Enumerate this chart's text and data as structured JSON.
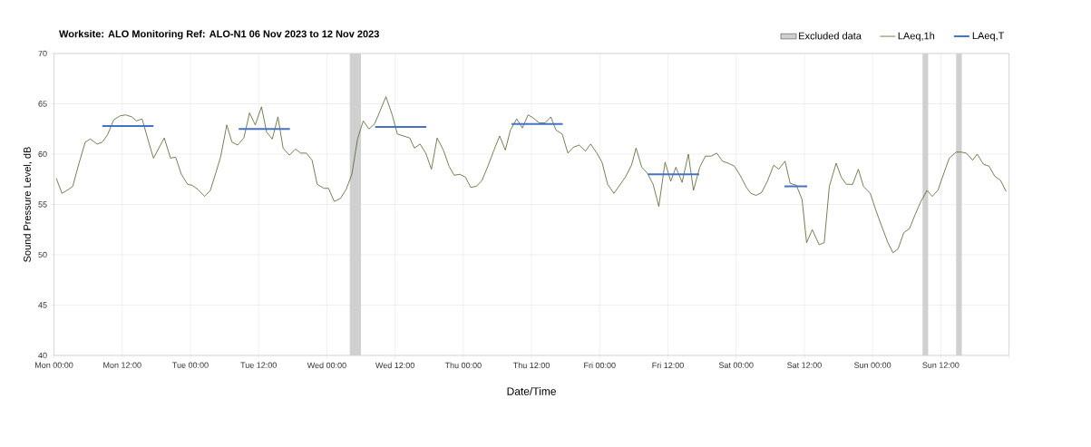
{
  "chart_data": {
    "type": "line",
    "title": "Worksite: ALO    Monitoring Ref: ALO-N1     06 Nov 2023 to 12 Nov 2023",
    "xlabel": "Date/Time",
    "ylabel": "Sound Pressure Level, dB",
    "xlim": [
      "2023-11-06T00:00",
      "2023-11-13T00:00"
    ],
    "ylim": [
      40,
      70
    ],
    "xticks": [
      {
        "value": "2023-11-06T00:00",
        "label": "Mon 00:00"
      },
      {
        "value": "2023-11-06T12:00",
        "label": "Mon 12:00"
      },
      {
        "value": "2023-11-07T00:00",
        "label": "Tue 00:00"
      },
      {
        "value": "2023-11-07T12:00",
        "label": "Tue 12:00"
      },
      {
        "value": "2023-11-08T00:00",
        "label": "Wed 00:00"
      },
      {
        "value": "2023-11-08T12:00",
        "label": "Wed 12:00"
      },
      {
        "value": "2023-11-09T00:00",
        "label": "Thu 00:00"
      },
      {
        "value": "2023-11-09T12:00",
        "label": "Thu 12:00"
      },
      {
        "value": "2023-11-10T00:00",
        "label": "Fri 00:00"
      },
      {
        "value": "2023-11-10T12:00",
        "label": "Fri 12:00"
      },
      {
        "value": "2023-11-11T00:00",
        "label": "Sat 00:00"
      },
      {
        "value": "2023-11-11T12:00",
        "label": "Sat 12:00"
      },
      {
        "value": "2023-11-12T00:00",
        "label": "Sun 00:00"
      },
      {
        "value": "2023-11-12T12:00",
        "label": "Sun 12:00"
      },
      {
        "value": "2023-11-13T00:00",
        "label": null
      }
    ],
    "yticks": [
      40,
      45,
      50,
      55,
      60,
      65,
      70
    ],
    "grid": true,
    "legend": "top right",
    "line_style": "solid",
    "marker": "none",
    "bands": [
      {
        "axis": "x",
        "from": "2023-11-08T04:00",
        "to": "2023-11-08T06:00",
        "label": "Excluded data",
        "color": "#d0d0d0"
      },
      {
        "axis": "x",
        "from": "2023-11-12T08:48",
        "to": "2023-11-12T09:48",
        "color": "#d0d0d0"
      },
      {
        "axis": "x",
        "from": "2023-11-12T14:42",
        "to": "2023-11-12T15:42",
        "color": "#d0d0d0"
      }
    ],
    "series": [
      {
        "name": "LAeq,1h",
        "color": "#4f6228",
        "x": [
          "2023-11-06T00:24",
          "2023-11-06T01:24",
          "2023-11-06T02:18",
          "2023-11-06T03:18",
          "2023-11-06T04:24",
          "2023-11-06T05:30",
          "2023-11-06T06:24",
          "2023-11-06T07:36",
          "2023-11-06T08:30",
          "2023-11-06T09:24",
          "2023-11-06T10:30",
          "2023-11-06T11:36",
          "2023-11-06T12:36",
          "2023-11-06T13:42",
          "2023-11-06T14:30",
          "2023-11-06T15:30",
          "2023-11-06T16:30",
          "2023-11-06T17:30",
          "2023-11-06T19:24",
          "2023-11-06T20:30",
          "2023-11-06T21:24",
          "2023-11-06T22:24",
          "2023-11-06T23:30",
          "2023-11-07T00:18",
          "2023-11-07T01:18",
          "2023-11-07T02:30",
          "2023-11-07T03:30",
          "2023-11-07T04:30",
          "2023-11-07T05:18",
          "2023-11-07T06:24",
          "2023-11-07T07:18",
          "2023-11-07T08:18",
          "2023-11-07T09:24",
          "2023-11-07T10:24",
          "2023-11-07T11:24",
          "2023-11-07T12:30",
          "2023-11-07T13:24",
          "2023-11-07T14:24",
          "2023-11-07T15:24",
          "2023-11-07T16:18",
          "2023-11-07T17:24",
          "2023-11-07T18:30",
          "2023-11-07T19:24",
          "2023-11-07T20:24",
          "2023-11-07T21:24",
          "2023-11-07T22:18",
          "2023-11-07T23:30",
          "2023-11-08T00:18",
          "2023-11-08T01:18",
          "2023-11-08T02:24",
          "2023-11-08T03:24",
          "2023-11-08T04:24",
          "2023-11-08T05:24",
          "2023-11-08T06:24",
          "2023-11-08T07:24",
          "2023-11-08T08:24",
          "2023-11-08T10:24",
          "2023-11-08T11:30",
          "2023-11-08T12:24",
          "2023-11-08T13:30",
          "2023-11-08T14:36",
          "2023-11-08T15:24",
          "2023-11-08T16:24",
          "2023-11-08T17:24",
          "2023-11-08T18:24",
          "2023-11-08T19:24",
          "2023-11-08T20:30",
          "2023-11-08T21:30",
          "2023-11-08T22:24",
          "2023-11-08T23:24",
          "2023-11-09T00:24",
          "2023-11-09T01:18",
          "2023-11-09T02:18",
          "2023-11-09T03:18",
          "2023-11-09T04:24",
          "2023-11-09T05:24",
          "2023-11-09T06:24",
          "2023-11-09T07:24",
          "2023-11-09T08:18",
          "2023-11-09T09:24",
          "2023-11-09T10:24",
          "2023-11-09T11:24",
          "2023-11-09T12:18",
          "2023-11-09T13:24",
          "2023-11-09T14:24",
          "2023-11-09T15:24",
          "2023-11-09T16:18",
          "2023-11-09T17:24",
          "2023-11-09T18:24",
          "2023-11-09T19:24",
          "2023-11-09T20:24",
          "2023-11-09T21:30",
          "2023-11-09T22:24",
          "2023-11-09T23:30",
          "2023-11-10T00:24",
          "2023-11-10T01:24",
          "2023-11-10T02:30",
          "2023-11-10T03:30",
          "2023-11-10T04:30",
          "2023-11-10T05:36",
          "2023-11-10T06:24",
          "2023-11-10T07:24",
          "2023-11-10T08:24",
          "2023-11-10T09:24",
          "2023-11-10T10:24",
          "2023-11-10T11:30",
          "2023-11-10T12:30",
          "2023-11-10T13:24",
          "2023-11-10T14:30",
          "2023-11-10T15:36",
          "2023-11-10T16:30",
          "2023-11-10T17:36",
          "2023-11-10T18:36",
          "2023-11-10T19:36",
          "2023-11-10T20:36",
          "2023-11-10T21:36",
          "2023-11-10T22:36",
          "2023-11-10T23:42",
          "2023-11-11T00:42",
          "2023-11-11T01:48",
          "2023-11-11T02:36",
          "2023-11-11T03:30",
          "2023-11-11T04:30",
          "2023-11-11T05:30",
          "2023-11-11T06:36",
          "2023-11-11T07:30",
          "2023-11-11T08:36",
          "2023-11-11T09:30",
          "2023-11-11T10:36",
          "2023-11-11T11:36",
          "2023-11-11T12:24",
          "2023-11-11T13:24",
          "2023-11-11T14:36",
          "2023-11-11T15:30",
          "2023-11-11T16:24",
          "2023-11-11T17:36",
          "2023-11-11T18:30",
          "2023-11-11T19:24",
          "2023-11-11T20:30",
          "2023-11-11T21:30",
          "2023-11-11T22:24",
          "2023-11-11T23:36",
          "2023-11-12T00:36",
          "2023-11-12T01:42",
          "2023-11-12T02:42",
          "2023-11-12T03:36",
          "2023-11-12T04:30",
          "2023-11-12T05:30",
          "2023-11-12T06:30",
          "2023-11-12T07:30",
          "2023-11-12T08:30",
          "2023-11-12T09:36",
          "2023-11-12T10:30",
          "2023-11-12T11:30",
          "2023-11-12T12:36",
          "2023-11-12T13:30",
          "2023-11-12T14:42",
          "2023-11-12T15:36",
          "2023-11-12T16:30",
          "2023-11-12T17:36",
          "2023-11-12T18:24",
          "2023-11-12T19:30",
          "2023-11-12T20:30",
          "2023-11-12T21:30",
          "2023-11-12T22:30",
          "2023-11-12T23:30"
        ],
        "values": [
          57.6,
          56.1,
          56.4,
          56.8,
          59.1,
          61.2,
          61.5,
          61.0,
          61.2,
          61.9,
          63.4,
          63.8,
          63.9,
          63.7,
          63.3,
          63.5,
          61.5,
          59.6,
          61.6,
          59.6,
          59.7,
          58.0,
          57.0,
          56.9,
          56.5,
          55.8,
          56.4,
          58.2,
          59.7,
          62.9,
          61.2,
          60.9,
          61.6,
          64.1,
          62.9,
          64.7,
          62.2,
          61.5,
          63.7,
          60.6,
          59.9,
          60.5,
          60.1,
          60.1,
          59.4,
          57.0,
          56.6,
          56.6,
          55.3,
          55.6,
          56.5,
          58.0,
          61.5,
          63.3,
          62.5,
          63.0,
          65.7,
          63.9,
          62.0,
          61.8,
          61.6,
          60.6,
          61.0,
          60.1,
          58.5,
          61.6,
          60.4,
          58.8,
          57.9,
          58.0,
          57.7,
          56.7,
          56.8,
          57.4,
          58.9,
          60.4,
          61.8,
          60.4,
          62.4,
          63.5,
          62.6,
          63.9,
          63.6,
          63.1,
          63.1,
          63.7,
          62.4,
          62.0,
          60.1,
          60.7,
          60.9,
          60.3,
          61.0,
          60.1,
          59.2,
          57.0,
          56.1,
          56.9,
          57.7,
          58.9,
          60.6,
          58.7,
          58.1,
          57.0,
          54.8,
          59.2,
          57.3,
          58.7,
          57.2,
          60.0,
          56.4,
          58.7,
          59.8,
          59.8,
          60.1,
          59.3,
          59.1,
          58.8,
          57.9,
          56.7,
          56.1,
          55.9,
          56.2,
          57.3,
          58.9,
          58.5,
          59.3,
          57.1,
          56.9,
          55.5,
          51.2,
          52.5,
          51.0,
          51.2,
          56.8,
          59.1,
          57.7,
          57.0,
          57.0,
          58.5,
          56.8,
          56.1,
          54.4,
          52.7,
          51.2,
          50.2,
          50.6,
          52.2,
          52.6,
          54.0,
          55.3,
          56.4,
          55.8,
          56.4,
          58.2,
          59.6,
          60.2,
          60.2,
          60.1,
          59.4,
          60.0,
          59.0,
          58.8,
          57.8,
          57.4,
          56.3
        ]
      },
      {
        "name": "LAeq,T",
        "color": "#4472c4",
        "x": [
          "2023-11-06T08:30",
          "2023-11-06T17:30"
        ],
        "values": [
          62.8,
          62.8
        ]
      },
      {
        "color": "#4472c4",
        "x": [
          "2023-11-07T08:30",
          "2023-11-07T17:30"
        ],
        "values": [
          62.5,
          62.5
        ]
      },
      {
        "color": "#4472c4",
        "x": [
          "2023-11-08T08:30",
          "2023-11-08T17:30"
        ],
        "values": [
          62.7,
          62.7
        ]
      },
      {
        "color": "#4472c4",
        "x": [
          "2023-11-09T08:30",
          "2023-11-09T17:30"
        ],
        "values": [
          63.0,
          63.0
        ]
      },
      {
        "color": "#4472c4",
        "x": [
          "2023-11-10T08:30",
          "2023-11-10T17:30"
        ],
        "values": [
          58.0,
          58.0
        ]
      },
      {
        "color": "#4472c4",
        "x": [
          "2023-11-11T08:30",
          "2023-11-11T12:30"
        ],
        "values": [
          56.8,
          56.8
        ]
      }
    ]
  }
}
